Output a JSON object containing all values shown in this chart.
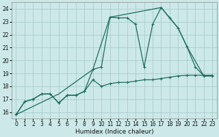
{
  "xlabel": "Humidex (Indice chaleur)",
  "bg_color": "#cce8e8",
  "grid_color": "#aacccc",
  "line_color": "#1a6b5a",
  "xlim": [
    -0.5,
    23.5
  ],
  "ylim": [
    15.5,
    24.5
  ],
  "xticks": [
    0,
    1,
    2,
    3,
    4,
    5,
    6,
    7,
    8,
    9,
    10,
    11,
    12,
    13,
    14,
    15,
    16,
    17,
    18,
    19,
    20,
    21,
    22,
    23
  ],
  "yticks": [
    16,
    17,
    18,
    19,
    20,
    21,
    22,
    23,
    24
  ],
  "line1_x": [
    0,
    1,
    2,
    3,
    4,
    5,
    6,
    7,
    8,
    9,
    10,
    11,
    12,
    13,
    14,
    15,
    16,
    17,
    18,
    19,
    20,
    21,
    22,
    23
  ],
  "line1_y": [
    15.8,
    16.8,
    17.0,
    17.4,
    17.4,
    16.7,
    17.3,
    17.3,
    17.6,
    18.5,
    18.0,
    18.2,
    18.3,
    18.3,
    18.4,
    18.5,
    18.5,
    18.6,
    18.7,
    18.8,
    18.85,
    18.85,
    18.85,
    18.85
  ],
  "line2_x": [
    0,
    1,
    2,
    3,
    4,
    5,
    6,
    7,
    8,
    9,
    10,
    11,
    12,
    13,
    14,
    15,
    16,
    17,
    18,
    19,
    20,
    21,
    22,
    23
  ],
  "line2_y": [
    15.8,
    16.8,
    17.0,
    17.4,
    17.4,
    16.7,
    17.3,
    17.3,
    17.6,
    19.3,
    19.5,
    23.35,
    23.3,
    23.3,
    22.8,
    19.5,
    22.8,
    24.1,
    23.3,
    22.5,
    21.1,
    19.5,
    18.8,
    18.8
  ],
  "line3_x": [
    0,
    5,
    9,
    11,
    17,
    19,
    20,
    22,
    23
  ],
  "line3_y": [
    15.8,
    17.4,
    19.3,
    23.35,
    24.1,
    22.5,
    21.1,
    18.8,
    18.8
  ]
}
